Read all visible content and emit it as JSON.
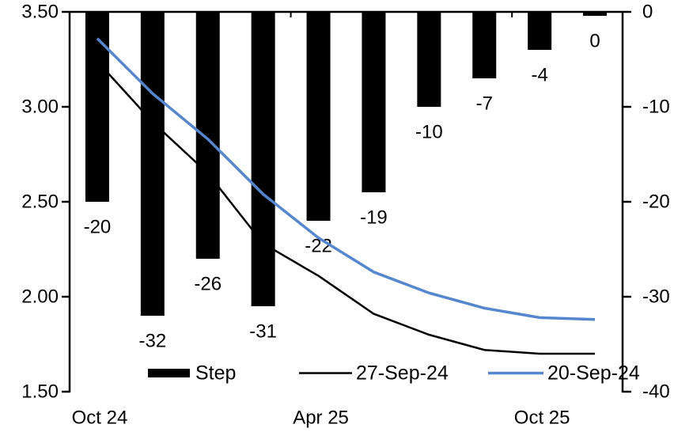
{
  "chart_data": {
    "type": "combo_bar_line",
    "title": "",
    "legend_position": "bottom",
    "grid": false,
    "background": "#ffffff",
    "left_axis": {
      "min": 1.5,
      "max": 3.5,
      "tick_values": [
        3.5,
        3.0,
        2.5,
        2.0,
        1.5
      ],
      "tick_labels": [
        "3.50",
        "3.00",
        "2.50",
        "2.00",
        "1.50"
      ]
    },
    "right_axis": {
      "min": -40,
      "max": 0,
      "tick_values": [
        0,
        -10,
        -20,
        -30,
        -40
      ],
      "tick_labels": [
        "0",
        "-10",
        "-20",
        "-30",
        "-40"
      ]
    },
    "x_axis": {
      "tick_labels": [
        {
          "index": 0,
          "label": "Oct 24"
        },
        {
          "index": 4,
          "label": "Apr 25"
        },
        {
          "index": 8,
          "label": "Oct 25"
        }
      ],
      "boundary_tick_indices": [
        4,
        8
      ]
    },
    "series": {
      "bar": {
        "name": "Step",
        "color": "#000000",
        "axis": "right",
        "values": [
          -20,
          -32,
          -26,
          -31,
          -22,
          -19,
          -10,
          -7,
          -4,
          0
        ],
        "labels": [
          "-20",
          "-32",
          "-26",
          "-31",
          "-22",
          "-19",
          "-10",
          "-7",
          "-4",
          "0"
        ]
      },
      "lines": [
        {
          "name": "27-Sep-24",
          "color": "#000000",
          "stroke_width": 2.5,
          "axis": "left",
          "values": [
            3.24,
            2.92,
            2.65,
            2.28,
            2.11,
            1.91,
            1.8,
            1.72,
            1.7,
            1.7
          ]
        },
        {
          "name": "20-Sep-24",
          "color": "#5586CE",
          "stroke_width": 3.5,
          "axis": "left",
          "values": [
            3.36,
            3.07,
            2.83,
            2.54,
            2.31,
            2.13,
            2.02,
            1.94,
            1.89,
            1.88
          ]
        }
      ]
    },
    "legend": [
      {
        "label": "Step",
        "swatch": "bar",
        "color": "#000000"
      },
      {
        "label": "27-Sep-24",
        "swatch": "line",
        "color": "#000000"
      },
      {
        "label": "20-Sep-24",
        "swatch": "line",
        "color": "#5586CE"
      }
    ]
  }
}
